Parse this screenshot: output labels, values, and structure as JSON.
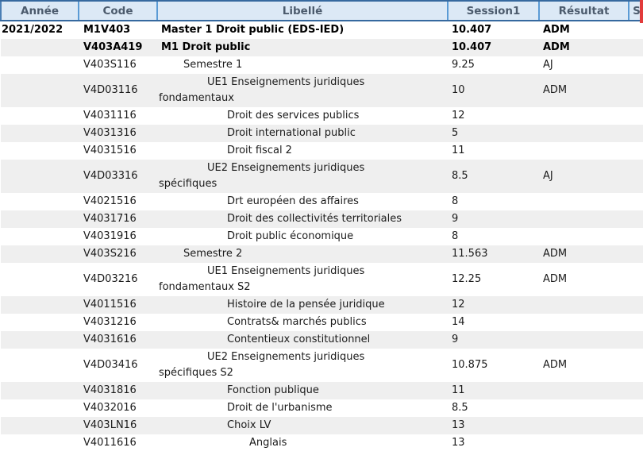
{
  "header": {
    "columns": [
      {
        "label": "Année"
      },
      {
        "label": "Code"
      },
      {
        "label": "Libellé"
      },
      {
        "label": "Session1"
      },
      {
        "label": "Résultat"
      },
      {
        "label": "S"
      }
    ]
  },
  "rows": [
    {
      "annee": "2021/2022",
      "code": "M1V403",
      "libelle": "Master 1 Droit public (EDS-IED)",
      "session1": "10.407",
      "resultat": "ADM",
      "level": 0,
      "bold": true
    },
    {
      "annee": "",
      "code": "V403A419",
      "libelle": "M1 Droit public",
      "session1": "10.407",
      "resultat": "ADM",
      "level": 0,
      "bold": true
    },
    {
      "annee": "",
      "code": "V403S116",
      "libelle": "Semestre 1",
      "session1": "9.25",
      "resultat": "AJ",
      "level": 1,
      "bold": false
    },
    {
      "annee": "",
      "code": "V4D03116",
      "libelle": "UE1 Enseignements juridiques\nfondamentaux",
      "session1": "10",
      "resultat": "ADM",
      "level": 2,
      "bold": false
    },
    {
      "annee": "",
      "code": "V4031116",
      "libelle": "Droit des services publics",
      "session1": "12",
      "resultat": "",
      "level": 3,
      "bold": false
    },
    {
      "annee": "",
      "code": "V4031316",
      "libelle": "Droit international public",
      "session1": "5",
      "resultat": "",
      "level": 3,
      "bold": false
    },
    {
      "annee": "",
      "code": "V4031516",
      "libelle": "Droit fiscal 2",
      "session1": "11",
      "resultat": "",
      "level": 3,
      "bold": false
    },
    {
      "annee": "",
      "code": "V4D03316",
      "libelle": "UE2 Enseignements juridiques\nspécifiques",
      "session1": "8.5",
      "resultat": "AJ",
      "level": 2,
      "bold": false
    },
    {
      "annee": "",
      "code": "V4021516",
      "libelle": "Drt européen des affaires",
      "session1": "8",
      "resultat": "",
      "level": 3,
      "bold": false
    },
    {
      "annee": "",
      "code": "V4031716",
      "libelle": "Droit des collectivités territoriales",
      "session1": "9",
      "resultat": "",
      "level": 3,
      "bold": false
    },
    {
      "annee": "",
      "code": "V4031916",
      "libelle": "Droit public économique",
      "session1": "8",
      "resultat": "",
      "level": 3,
      "bold": false
    },
    {
      "annee": "",
      "code": "V403S216",
      "libelle": "Semestre 2",
      "session1": "11.563",
      "resultat": "ADM",
      "level": 1,
      "bold": false
    },
    {
      "annee": "",
      "code": "V4D03216",
      "libelle": "UE1 Enseignements juridiques\nfondamentaux S2",
      "session1": "12.25",
      "resultat": "ADM",
      "level": 2,
      "bold": false
    },
    {
      "annee": "",
      "code": "V4011516",
      "libelle": "Histoire de la pensée juridique",
      "session1": "12",
      "resultat": "",
      "level": 3,
      "bold": false
    },
    {
      "annee": "",
      "code": "V4031216",
      "libelle": "Contrats& marchés publics",
      "session1": "14",
      "resultat": "",
      "level": 3,
      "bold": false
    },
    {
      "annee": "",
      "code": "V4031616",
      "libelle": "Contentieux constitutionnel",
      "session1": "9",
      "resultat": "",
      "level": 3,
      "bold": false
    },
    {
      "annee": "",
      "code": "V4D03416",
      "libelle": "UE2 Enseignements juridiques\nspécifiques S2",
      "session1": "10.875",
      "resultat": "ADM",
      "level": 2,
      "bold": false
    },
    {
      "annee": "",
      "code": "V4031816",
      "libelle": "Fonction publique",
      "session1": "11",
      "resultat": "",
      "level": 3,
      "bold": false
    },
    {
      "annee": "",
      "code": "V4032016",
      "libelle": "Droit de l'urbanisme",
      "session1": "8.5",
      "resultat": "",
      "level": 3,
      "bold": false
    },
    {
      "annee": "",
      "code": "V403LN16",
      "libelle": "Choix LV",
      "session1": "13",
      "resultat": "",
      "level": 3,
      "bold": false
    },
    {
      "annee": "",
      "code": "V4011616",
      "libelle": "Anglais",
      "session1": "13",
      "resultat": "",
      "level": 4,
      "bold": false
    }
  ],
  "colors": {
    "header_bg": "#dce9f6",
    "header_border": "#36699f",
    "header_separator": "#5b9bd5",
    "header_text": "#4c5b6d",
    "row_stripe": "#efefef",
    "edge_marker_red": "#e23b3b"
  }
}
